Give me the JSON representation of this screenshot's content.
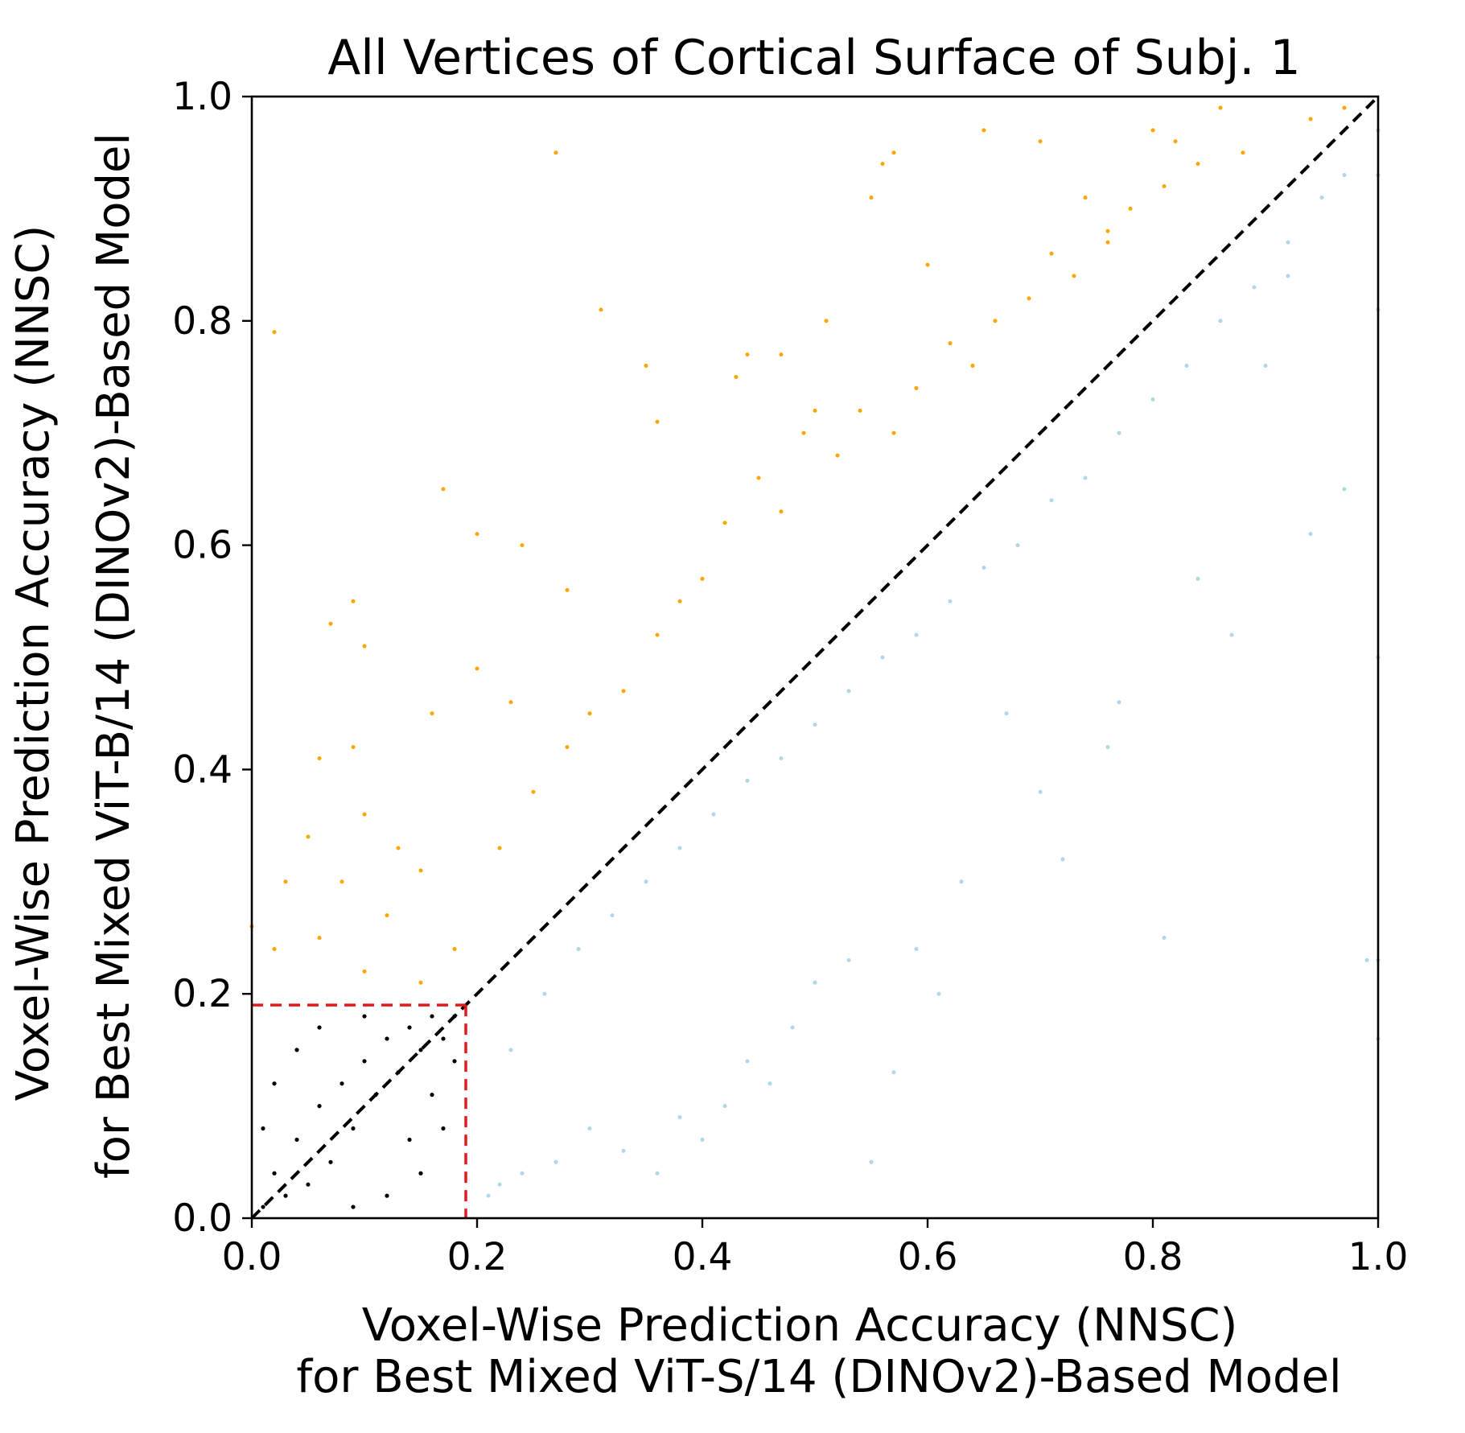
{
  "chart_data": {
    "type": "scatter",
    "title": "All Vertices of Cortical Surface of Subj. 1",
    "xlabel_lines": [
      "Voxel-Wise Prediction Accuracy (NNSC)",
      "for Best Mixed ViT-S/14 (DINOv2)-Based Model"
    ],
    "ylabel_lines": [
      "Voxel-Wise Prediction Accuracy (NNSC)",
      "for Best Mixed ViT-B/14 (DINOv2)-Based Model"
    ],
    "xlim": [
      0.0,
      1.0
    ],
    "ylim": [
      0.0,
      1.0
    ],
    "xticks": [
      "0.0",
      "0.2",
      "0.4",
      "0.6",
      "0.8",
      "1.0"
    ],
    "yticks": [
      "0.0",
      "0.2",
      "0.4",
      "0.6",
      "0.8",
      "1.0"
    ],
    "grid": false,
    "legend": "none",
    "identity_line": {
      "from": [
        0.0,
        0.0
      ],
      "to": [
        1.0,
        1.0
      ],
      "style": "dashed",
      "color": "#000000"
    },
    "threshold_box": {
      "x": 0.19,
      "y": 0.19,
      "style": "dashed",
      "color": "#e31a1c"
    },
    "series": [
      {
        "color": "#ffa500",
        "description_points": "vertices where y > x",
        "points": [
          [
            0.02,
            0.79
          ],
          [
            0.27,
            0.95
          ],
          [
            0.31,
            0.81
          ],
          [
            0.07,
            0.53
          ],
          [
            0.09,
            0.55
          ],
          [
            0.1,
            0.51
          ],
          [
            0.17,
            0.65
          ],
          [
            0.2,
            0.61
          ],
          [
            0.24,
            0.6
          ],
          [
            0.28,
            0.56
          ],
          [
            0.35,
            0.76
          ],
          [
            0.36,
            0.71
          ],
          [
            0.43,
            0.75
          ],
          [
            0.44,
            0.77
          ],
          [
            0.47,
            0.77
          ],
          [
            0.5,
            0.72
          ],
          [
            0.51,
            0.8
          ],
          [
            0.56,
            0.94
          ],
          [
            0.57,
            0.95
          ],
          [
            0.55,
            0.91
          ],
          [
            0.6,
            0.85
          ],
          [
            0.65,
            0.97
          ],
          [
            0.7,
            0.96
          ],
          [
            0.74,
            0.91
          ],
          [
            0.76,
            0.88
          ],
          [
            0.8,
            0.97
          ],
          [
            0.82,
            0.96
          ],
          [
            0.86,
            0.99
          ],
          [
            0.94,
            0.98
          ],
          [
            0.97,
            0.99
          ],
          [
            0.06,
            0.41
          ],
          [
            0.09,
            0.42
          ],
          [
            0.16,
            0.45
          ],
          [
            0.2,
            0.49
          ],
          [
            0.23,
            0.46
          ],
          [
            0.05,
            0.34
          ],
          [
            0.08,
            0.3
          ],
          [
            0.1,
            0.36
          ],
          [
            0.13,
            0.33
          ],
          [
            0.15,
            0.31
          ],
          [
            0.0,
            0.26
          ],
          [
            0.02,
            0.24
          ],
          [
            0.03,
            0.3
          ],
          [
            0.06,
            0.25
          ],
          [
            0.1,
            0.22
          ],
          [
            0.12,
            0.27
          ],
          [
            0.15,
            0.21
          ],
          [
            0.18,
            0.24
          ],
          [
            0.22,
            0.33
          ],
          [
            0.25,
            0.38
          ],
          [
            0.28,
            0.42
          ],
          [
            0.3,
            0.45
          ],
          [
            0.33,
            0.47
          ],
          [
            0.36,
            0.52
          ],
          [
            0.38,
            0.55
          ],
          [
            0.4,
            0.57
          ],
          [
            0.42,
            0.62
          ],
          [
            0.45,
            0.66
          ],
          [
            0.47,
            0.63
          ],
          [
            0.49,
            0.7
          ],
          [
            0.52,
            0.68
          ],
          [
            0.54,
            0.72
          ],
          [
            0.57,
            0.7
          ],
          [
            0.59,
            0.74
          ],
          [
            0.62,
            0.78
          ],
          [
            0.64,
            0.76
          ],
          [
            0.66,
            0.8
          ],
          [
            0.69,
            0.82
          ],
          [
            0.71,
            0.86
          ],
          [
            0.73,
            0.84
          ],
          [
            0.76,
            0.87
          ],
          [
            0.78,
            0.9
          ],
          [
            0.81,
            0.92
          ],
          [
            0.84,
            0.94
          ],
          [
            0.88,
            0.95
          ]
        ]
      },
      {
        "color": "#add8e6",
        "description_points": "vertices where y < x",
        "points": [
          [
            1.0,
            0.97
          ],
          [
            1.0,
            0.93
          ],
          [
            1.0,
            0.81
          ],
          [
            1.0,
            0.5
          ],
          [
            1.0,
            0.23
          ],
          [
            1.0,
            0.16
          ],
          [
            0.99,
            0.23
          ],
          [
            0.97,
            0.65
          ],
          [
            0.94,
            0.61
          ],
          [
            0.92,
            0.84
          ],
          [
            0.9,
            0.76
          ],
          [
            0.87,
            0.52
          ],
          [
            0.84,
            0.57
          ],
          [
            0.81,
            0.25
          ],
          [
            0.77,
            0.46
          ],
          [
            0.76,
            0.42
          ],
          [
            0.72,
            0.32
          ],
          [
            0.7,
            0.38
          ],
          [
            0.67,
            0.45
          ],
          [
            0.63,
            0.3
          ],
          [
            0.61,
            0.2
          ],
          [
            0.59,
            0.24
          ],
          [
            0.57,
            0.13
          ],
          [
            0.55,
            0.05
          ],
          [
            0.53,
            0.23
          ],
          [
            0.5,
            0.21
          ],
          [
            0.48,
            0.17
          ],
          [
            0.46,
            0.12
          ],
          [
            0.44,
            0.14
          ],
          [
            0.42,
            0.1
          ],
          [
            0.4,
            0.07
          ],
          [
            0.38,
            0.09
          ],
          [
            0.36,
            0.04
          ],
          [
            0.33,
            0.06
          ],
          [
            0.3,
            0.08
          ],
          [
            0.27,
            0.05
          ],
          [
            0.24,
            0.04
          ],
          [
            0.22,
            0.03
          ],
          [
            0.21,
            0.02
          ],
          [
            0.23,
            0.15
          ],
          [
            0.26,
            0.2
          ],
          [
            0.29,
            0.24
          ],
          [
            0.32,
            0.27
          ],
          [
            0.35,
            0.3
          ],
          [
            0.38,
            0.33
          ],
          [
            0.41,
            0.36
          ],
          [
            0.44,
            0.39
          ],
          [
            0.47,
            0.41
          ],
          [
            0.5,
            0.44
          ],
          [
            0.53,
            0.47
          ],
          [
            0.56,
            0.5
          ],
          [
            0.59,
            0.52
          ],
          [
            0.62,
            0.55
          ],
          [
            0.65,
            0.58
          ],
          [
            0.68,
            0.6
          ],
          [
            0.71,
            0.64
          ],
          [
            0.74,
            0.66
          ],
          [
            0.77,
            0.7
          ],
          [
            0.8,
            0.73
          ],
          [
            0.83,
            0.76
          ],
          [
            0.86,
            0.8
          ],
          [
            0.89,
            0.83
          ],
          [
            0.92,
            0.87
          ],
          [
            0.95,
            0.91
          ],
          [
            0.97,
            0.93
          ]
        ]
      },
      {
        "color": "#000000",
        "description_points": "vertices with x < 0.19 and y < 0.19",
        "points": [
          [
            0.01,
            0.01
          ],
          [
            0.02,
            0.04
          ],
          [
            0.03,
            0.02
          ],
          [
            0.04,
            0.07
          ],
          [
            0.05,
            0.03
          ],
          [
            0.06,
            0.1
          ],
          [
            0.07,
            0.05
          ],
          [
            0.08,
            0.12
          ],
          [
            0.09,
            0.08
          ],
          [
            0.1,
            0.14
          ],
          [
            0.11,
            0.11
          ],
          [
            0.12,
            0.16
          ],
          [
            0.13,
            0.13
          ],
          [
            0.14,
            0.17
          ],
          [
            0.15,
            0.15
          ],
          [
            0.16,
            0.18
          ],
          [
            0.17,
            0.16
          ],
          [
            0.18,
            0.14
          ],
          [
            0.18,
            0.18
          ],
          [
            0.12,
            0.02
          ],
          [
            0.15,
            0.04
          ],
          [
            0.17,
            0.08
          ],
          [
            0.02,
            0.12
          ],
          [
            0.04,
            0.15
          ],
          [
            0.06,
            0.17
          ],
          [
            0.01,
            0.08
          ],
          [
            0.09,
            0.01
          ],
          [
            0.14,
            0.07
          ],
          [
            0.16,
            0.11
          ],
          [
            0.1,
            0.18
          ]
        ]
      }
    ]
  }
}
